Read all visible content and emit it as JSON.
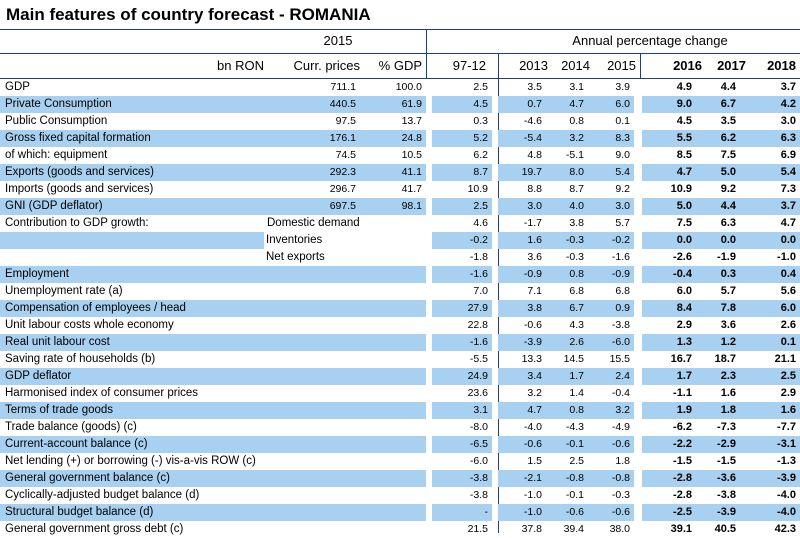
{
  "title": "Main features of country forecast - ROMANIA",
  "header": {
    "year_group": "2015",
    "change_group": "Annual percentage change",
    "unit_label": "bn RON",
    "columns": [
      "Curr. prices",
      "% GDP",
      "97-12",
      "2013",
      "2014",
      "2015",
      "2016",
      "2017",
      "2018"
    ]
  },
  "rows": [
    {
      "label": "GDP",
      "sub": "",
      "hl": false,
      "v": [
        "711.1",
        "100.0",
        "2.5",
        "3.5",
        "3.1",
        "3.9",
        "4.9",
        "4.4",
        "3.7"
      ]
    },
    {
      "label": "Private Consumption",
      "sub": "",
      "hl": true,
      "v": [
        "440.5",
        "61.9",
        "4.5",
        "0.7",
        "4.7",
        "6.0",
        "9.0",
        "6.7",
        "4.2"
      ]
    },
    {
      "label": "Public Consumption",
      "sub": "",
      "hl": false,
      "v": [
        "97.5",
        "13.7",
        "0.3",
        "-4.6",
        "0.8",
        "0.1",
        "4.5",
        "3.5",
        "3.0"
      ]
    },
    {
      "label": "Gross fixed capital formation",
      "sub": "",
      "hl": true,
      "v": [
        "176.1",
        "24.8",
        "5.2",
        "-5.4",
        "3.2",
        "8.3",
        "5.5",
        "6.2",
        "6.3"
      ]
    },
    {
      "label": "of which: equipment",
      "sub": "",
      "hl": false,
      "v": [
        "74.5",
        "10.5",
        "6.2",
        "4.8",
        "-5.1",
        "9.0",
        "8.5",
        "7.5",
        "6.9"
      ]
    },
    {
      "label": "Exports (goods and services)",
      "sub": "",
      "hl": true,
      "v": [
        "292.3",
        "41.1",
        "8.7",
        "19.7",
        "8.0",
        "5.4",
        "4.7",
        "5.0",
        "5.4"
      ]
    },
    {
      "label": "Imports (goods and services)",
      "sub": "",
      "hl": false,
      "v": [
        "296.7",
        "41.7",
        "10.9",
        "8.8",
        "8.7",
        "9.2",
        "10.9",
        "9.2",
        "7.3"
      ]
    },
    {
      "label": "GNI (GDP deflator)",
      "sub": "",
      "hl": true,
      "v": [
        "697.5",
        "98.1",
        "2.5",
        "3.0",
        "4.0",
        "3.0",
        "5.0",
        "4.4",
        "3.7"
      ]
    },
    {
      "label": "Contribution to GDP growth:",
      "sub": "Domestic demand",
      "hl": false,
      "v": [
        "",
        "",
        "4.6",
        "-1.7",
        "3.8",
        "5.7",
        "7.5",
        "6.3",
        "4.7"
      ]
    },
    {
      "label": "",
      "sub": "Inventories",
      "hl": true,
      "v": [
        "",
        "",
        "-0.2",
        "1.6",
        "-0.3",
        "-0.2",
        "0.0",
        "0.0",
        "0.0"
      ]
    },
    {
      "label": "",
      "sub": "Net exports",
      "hl": false,
      "v": [
        "",
        "",
        "-1.8",
        "3.6",
        "-0.3",
        "-1.6",
        "-2.6",
        "-1.9",
        "-1.0"
      ]
    },
    {
      "label": "Employment",
      "sub": "",
      "hl": true,
      "v": [
        "",
        "",
        "-1.6",
        "-0.9",
        "0.8",
        "-0.9",
        "-0.4",
        "0.3",
        "0.4"
      ]
    },
    {
      "label": "Unemployment rate (a)",
      "sub": "",
      "hl": false,
      "v": [
        "",
        "",
        "7.0",
        "7.1",
        "6.8",
        "6.8",
        "6.0",
        "5.7",
        "5.6"
      ]
    },
    {
      "label": "Compensation of employees / head",
      "sub": "",
      "hl": true,
      "v": [
        "",
        "",
        "27.9",
        "3.8",
        "6.7",
        "0.9",
        "8.4",
        "7.8",
        "6.0"
      ]
    },
    {
      "label": "Unit labour costs whole economy",
      "sub": "",
      "hl": false,
      "v": [
        "",
        "",
        "22.8",
        "-0.6",
        "4.3",
        "-3.8",
        "2.9",
        "3.6",
        "2.6"
      ]
    },
    {
      "label": "Real unit labour cost",
      "sub": "",
      "hl": true,
      "v": [
        "",
        "",
        "-1.6",
        "-3.9",
        "2.6",
        "-6.0",
        "1.3",
        "1.2",
        "0.1"
      ]
    },
    {
      "label": "Saving rate of households (b)",
      "sub": "",
      "hl": false,
      "v": [
        "",
        "",
        "-5.5",
        "13.3",
        "14.5",
        "15.5",
        "16.7",
        "18.7",
        "21.1"
      ]
    },
    {
      "label": "GDP deflator",
      "sub": "",
      "hl": true,
      "v": [
        "",
        "",
        "24.9",
        "3.4",
        "1.7",
        "2.4",
        "1.7",
        "2.3",
        "2.5"
      ]
    },
    {
      "label": "Harmonised index of consumer prices",
      "sub": "",
      "hl": false,
      "v": [
        "",
        "",
        "23.6",
        "3.2",
        "1.4",
        "-0.4",
        "-1.1",
        "1.6",
        "2.9"
      ]
    },
    {
      "label": "Terms of trade goods",
      "sub": "",
      "hl": true,
      "v": [
        "",
        "",
        "3.1",
        "4.7",
        "0.8",
        "3.2",
        "1.9",
        "1.8",
        "1.6"
      ]
    },
    {
      "label": "Trade balance (goods) (c)",
      "sub": "",
      "hl": false,
      "v": [
        "",
        "",
        "-8.0",
        "-4.0",
        "-4.3",
        "-4.9",
        "-6.2",
        "-7.3",
        "-7.7"
      ]
    },
    {
      "label": "Current-account balance (c)",
      "sub": "",
      "hl": true,
      "v": [
        "",
        "",
        "-6.5",
        "-0.6",
        "-0.1",
        "-0.6",
        "-2.2",
        "-2.9",
        "-3.1"
      ]
    },
    {
      "label": "Net lending (+) or borrowing (-) vis-a-vis ROW (c)",
      "sub": "",
      "hl": false,
      "v": [
        "",
        "",
        "-6.0",
        "1.5",
        "2.5",
        "1.8",
        "-1.5",
        "-1.5",
        "-1.3"
      ]
    },
    {
      "label": "General government balance (c)",
      "sub": "",
      "hl": true,
      "v": [
        "",
        "",
        "-3.8",
        "-2.1",
        "-0.8",
        "-0.8",
        "-2.8",
        "-3.6",
        "-3.9"
      ]
    },
    {
      "label": "Cyclically-adjusted budget balance (d)",
      "sub": "",
      "hl": false,
      "v": [
        "",
        "",
        "-3.8",
        "-1.0",
        "-0.1",
        "-0.3",
        "-2.8",
        "-3.8",
        "-4.0"
      ]
    },
    {
      "label": "Structural budget balance (d)",
      "sub": "",
      "hl": true,
      "v": [
        "",
        "",
        "-",
        "-1.0",
        "-0.6",
        "-0.6",
        "-2.5",
        "-3.9",
        "-4.0"
      ]
    },
    {
      "label": "General government gross debt (c)",
      "sub": "",
      "hl": false,
      "v": [
        "",
        "",
        "21.5",
        "37.8",
        "39.4",
        "38.0",
        "39.1",
        "40.5",
        "42.3"
      ]
    }
  ]
}
